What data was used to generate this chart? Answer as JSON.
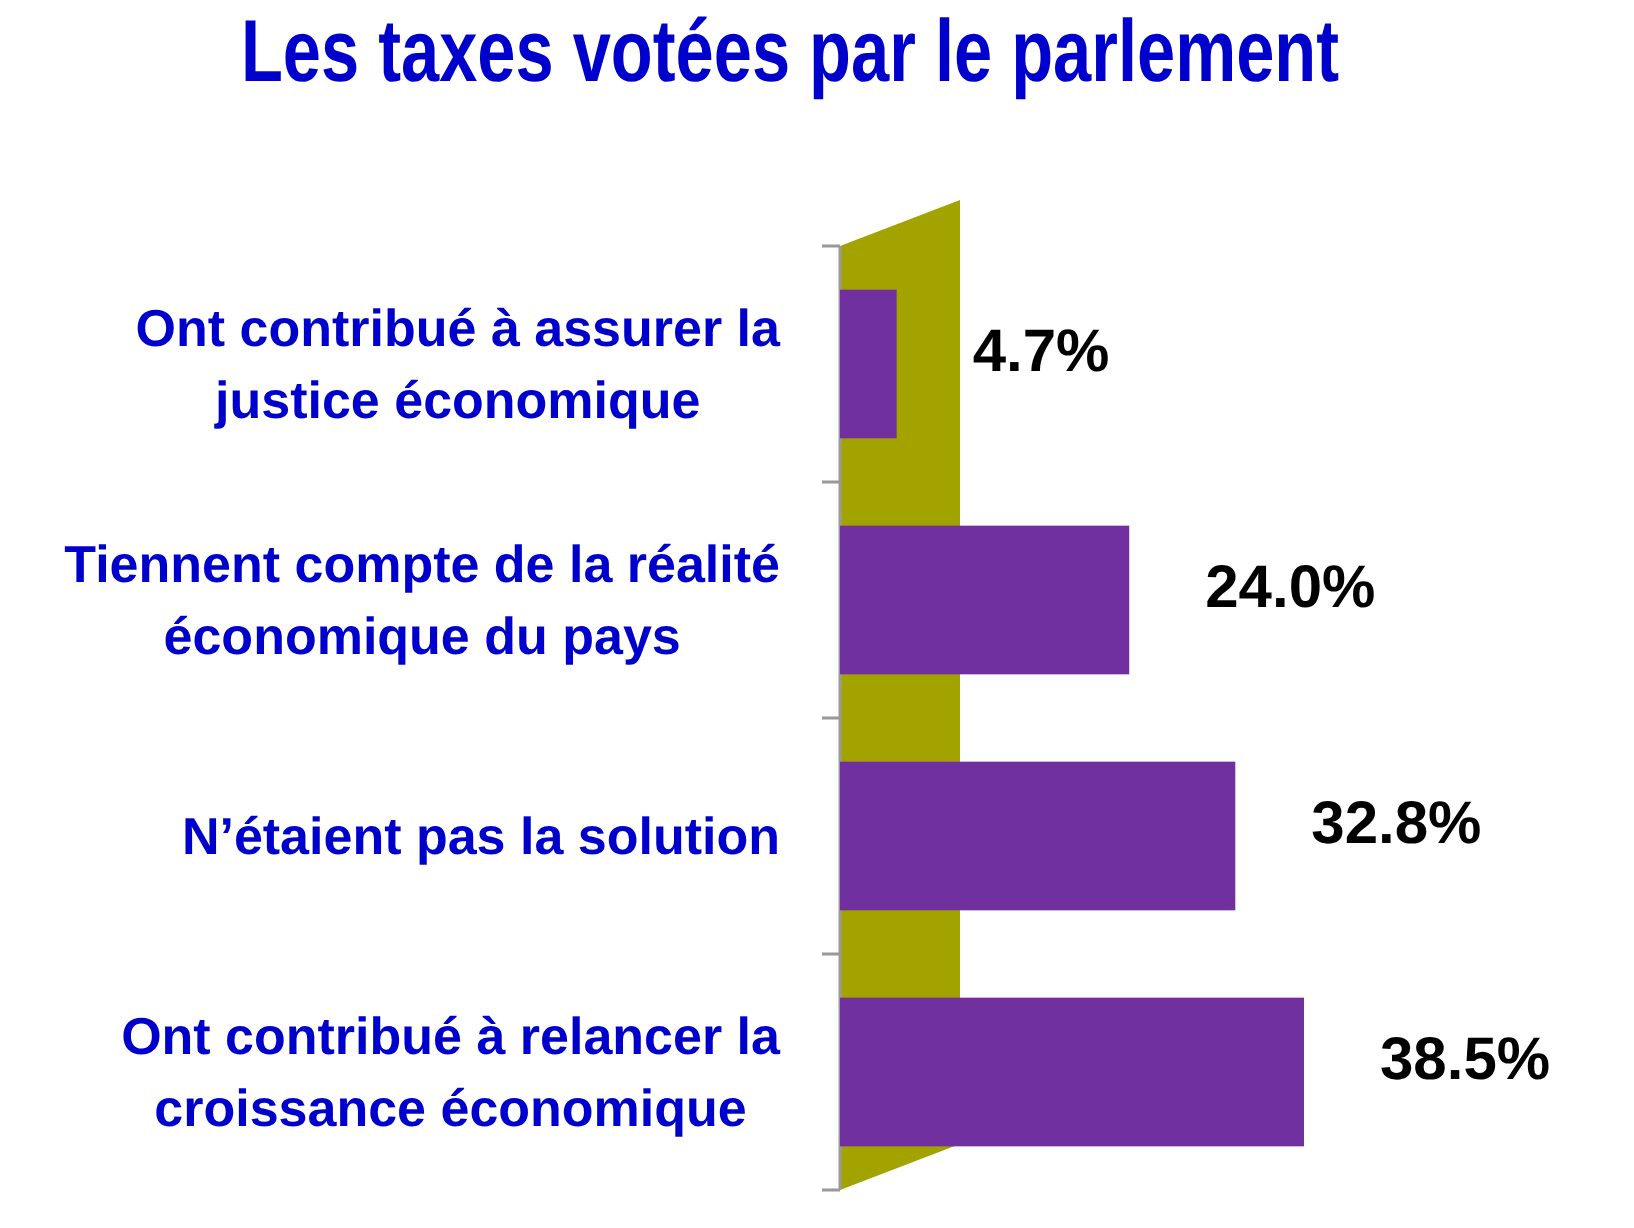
{
  "chart_data": {
    "type": "bar",
    "orientation": "horizontal",
    "title": "Les taxes votées par le parlement",
    "categories": [
      "Ont contribué à assurer la justice économique",
      "Tiennent compte de la réalité économique du pays",
      "N’étaient pas la solution",
      "Ont contribué à relancer la croissance économique"
    ],
    "values": [
      4.7,
      24.0,
      32.8,
      38.5
    ],
    "value_labels": [
      "4.7%",
      "24.0%",
      "32.8%",
      "38.5%"
    ],
    "color": "#7030a0"
  }
}
